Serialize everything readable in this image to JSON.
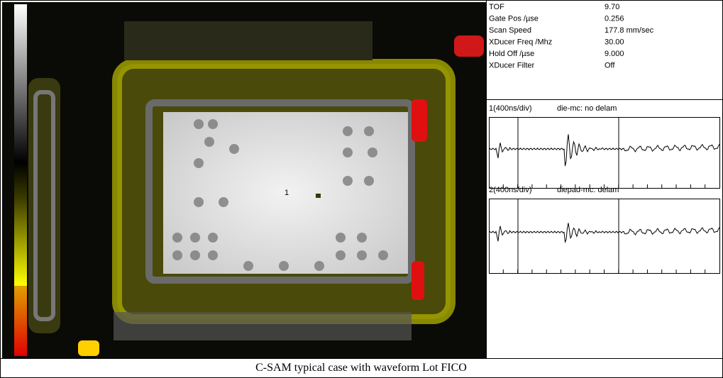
{
  "parameters": [
    {
      "label": "TOF",
      "value": "9.70"
    },
    {
      "label": "Gate Pos /µse",
      "value": "0.256"
    },
    {
      "label": "Scan Speed",
      "value": "177.8 mm/sec"
    },
    {
      "label": "XDucer Freq /Mhz",
      "value": "30.00"
    },
    {
      "label": "Hold Off /µse",
      "value": "9.000"
    },
    {
      "label": "XDucer Filter",
      "value": "Off"
    }
  ],
  "waveforms": [
    {
      "channel": "1(400ns/div)",
      "description": "die-mc: no delam"
    },
    {
      "channel": "2(400ns/div)",
      "description": "diepad-mc:  delam"
    }
  ],
  "scan": {
    "marker": "1"
  },
  "caption": "C-SAM typical case with waveform  Lot FICO"
}
